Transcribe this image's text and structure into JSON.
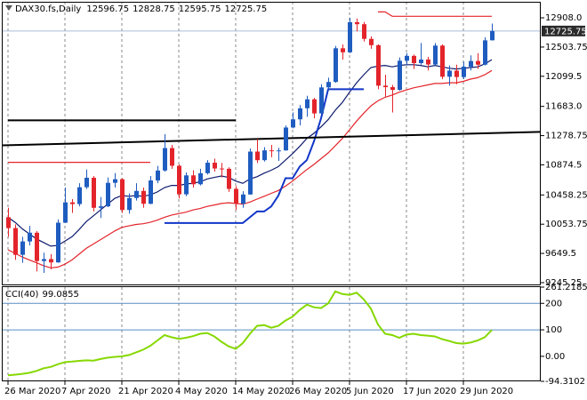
{
  "chart_data": [
    {
      "type": "candlestick",
      "title": "DAX30.fs,Daily",
      "categories": [
        "26 Mar 2020",
        null,
        null,
        null,
        null,
        null,
        null,
        null,
        "7 Apr 2020",
        null,
        null,
        null,
        null,
        null,
        null,
        null,
        "21 Apr 2020",
        null,
        null,
        null,
        null,
        null,
        null,
        null,
        "4 May 2020",
        null,
        null,
        null,
        null,
        null,
        null,
        null,
        "14 May 2020",
        null,
        null,
        null,
        null,
        null,
        null,
        null,
        "26 May 2020",
        null,
        null,
        null,
        null,
        null,
        null,
        null,
        "5 Jun 2020",
        null,
        null,
        null,
        null,
        null,
        null,
        null,
        "17 Jun 2020",
        null,
        null,
        null,
        null,
        null,
        null,
        null,
        "29 Jun 2020",
        null,
        null,
        null,
        null
      ],
      "open": [
        10150,
        10000,
        9630,
        9815,
        9936,
        9544,
        9571,
        9525,
        10075,
        10356,
        10332,
        10565,
        10696,
        10280,
        10301,
        10626,
        10676,
        10250,
        10416,
        10514,
        10336,
        10659,
        10796,
        11107,
        10862,
        10467,
        10729,
        10606,
        10759,
        10904,
        10824,
        10820,
        10542,
        10337,
        10465,
        11058,
        10939,
        11075,
        11065,
        11074,
        11391,
        11504,
        11657,
        11781,
        11586,
        11946,
        12021,
        12487,
        12431,
        12848,
        12820,
        12617,
        12530,
        11970,
        11949,
        11911,
        12315,
        12382,
        12281,
        12331,
        12262,
        12524,
        12093,
        12178,
        12089,
        12232,
        12311,
        12260,
        12596.75
      ],
      "high": [
        10280,
        10050,
        9880,
        10030,
        9960,
        9660,
        9640,
        10120,
        10560,
        10400,
        10620,
        10810,
        10720,
        10430,
        10700,
        10760,
        10690,
        10480,
        10620,
        10560,
        10720,
        10860,
        11300,
        11150,
        10880,
        10770,
        10800,
        10820,
        10940,
        10960,
        10900,
        10840,
        10580,
        10510,
        11100,
        11230,
        11120,
        11150,
        11110,
        11420,
        11600,
        11700,
        11830,
        11800,
        11990,
        12080,
        12520,
        12540,
        12910,
        12900,
        12850,
        12650,
        12540,
        12120,
        11980,
        12360,
        12420,
        12400,
        12560,
        12370,
        12560,
        12540,
        12250,
        12260,
        12300,
        12390,
        12420,
        12640,
        12828.75
      ],
      "low": [
        9880,
        9560,
        9520,
        9760,
        9400,
        9380,
        9430,
        9520,
        10070,
        10210,
        10300,
        10540,
        10230,
        10140,
        10290,
        10560,
        10210,
        10200,
        10380,
        10280,
        10330,
        10620,
        10780,
        10820,
        10410,
        10440,
        10560,
        10590,
        10740,
        10780,
        10700,
        10500,
        10250,
        10280,
        10460,
        10900,
        10920,
        10980,
        10930,
        11070,
        11380,
        11420,
        11540,
        11520,
        11580,
        11900,
        12010,
        12330,
        12420,
        12720,
        12580,
        12480,
        11920,
        11820,
        11600,
        11900,
        12250,
        12200,
        12260,
        12180,
        12250,
        12060,
        11970,
        11990,
        12060,
        12180,
        12200,
        12250,
        12595.75
      ],
      "close": [
        10000,
        9630,
        9815,
        9936,
        9544,
        9571,
        9525,
        10075,
        10356,
        10332,
        10565,
        10696,
        10280,
        10301,
        10626,
        10676,
        10250,
        10416,
        10514,
        10336,
        10659,
        10796,
        11107,
        10862,
        10467,
        10729,
        10606,
        10759,
        10904,
        10824,
        10820,
        10542,
        10337,
        10465,
        11058,
        10939,
        11075,
        11065,
        11074,
        11391,
        11504,
        11657,
        11781,
        11586,
        11946,
        12021,
        12487,
        12431,
        12848,
        12820,
        12617,
        12530,
        11970,
        11949,
        11911,
        12315,
        12382,
        12281,
        12331,
        12262,
        12524,
        12093,
        12178,
        12089,
        12232,
        12311,
        12260,
        12596.75,
        12725.75
      ],
      "up_color": "#1f5cc0",
      "down_color": "#e3242b",
      "last_price": 12725.75,
      "last_price_color": "#a9bcd6",
      "overlays": [
        {
          "color": "#0d1b6e",
          "values": [
            10150,
            10080,
            9990,
            9920,
            9850,
            9800,
            9750,
            9760,
            9820,
            9880,
            9980,
            10090,
            10170,
            10250,
            10330,
            10410,
            10450,
            10440,
            10450,
            10440,
            10460,
            10500,
            10560,
            10590,
            10590,
            10610,
            10620,
            10640,
            10680,
            10700,
            10720,
            10700,
            10650,
            10620,
            10680,
            10710,
            10760,
            10800,
            10850,
            10940,
            11030,
            11130,
            11240,
            11310,
            11400,
            11500,
            11630,
            11740,
            11880,
            12010,
            12120,
            12220,
            12240,
            12250,
            12230,
            12250,
            12260,
            12260,
            12250,
            12230,
            12250,
            12230,
            12210,
            12200,
            12210,
            12220,
            12230,
            12270,
            12330
          ]
        },
        {
          "color": "#e3242b",
          "values": [
            9700,
            9650,
            9600,
            9560,
            9520,
            9480,
            9450,
            9460,
            9500,
            9560,
            9640,
            9720,
            9780,
            9840,
            9900,
            9960,
            10010,
            10030,
            10050,
            10060,
            10080,
            10110,
            10150,
            10180,
            10200,
            10220,
            10250,
            10270,
            10300,
            10320,
            10340,
            10350,
            10340,
            10330,
            10360,
            10400,
            10440,
            10480,
            10520,
            10580,
            10650,
            10730,
            10810,
            10880,
            10960,
            11040,
            11140,
            11240,
            11360,
            11480,
            11590,
            11690,
            11760,
            11810,
            11840,
            11880,
            11910,
            11940,
            11960,
            11980,
            12000,
            12000,
            12010,
            12010,
            12030,
            12060,
            12080,
            12120,
            12180
          ]
        },
        {
          "color": "#1236c8",
          "values": [
            null,
            null,
            null,
            null,
            null,
            null,
            null,
            null,
            null,
            null,
            null,
            null,
            null,
            null,
            null,
            null,
            null,
            null,
            null,
            null,
            null,
            null,
            10070,
            10070,
            10070,
            10070,
            10070,
            10070,
            10070,
            10070,
            10070,
            10070,
            10070,
            10070,
            10150,
            10230,
            10230,
            10300,
            10450,
            10690,
            10690,
            10850,
            10940,
            11200,
            11520,
            11920,
            11920,
            11920,
            11920,
            11920,
            11920,
            null,
            null,
            null,
            null,
            null,
            null,
            null,
            null,
            null,
            null,
            null,
            null,
            null,
            null,
            null,
            null,
            null,
            null
          ]
        },
        {
          "color": "#e3242b",
          "values": [
            null,
            null,
            null,
            null,
            null,
            null,
            null,
            null,
            null,
            null,
            null,
            null,
            null,
            null,
            null,
            null,
            null,
            null,
            null,
            null,
            null,
            null,
            null,
            null,
            null,
            null,
            null,
            null,
            null,
            null,
            null,
            null,
            null,
            null,
            null,
            null,
            null,
            null,
            null,
            null,
            null,
            null,
            null,
            null,
            null,
            null,
            null,
            null,
            null,
            null,
            null,
            null,
            12990,
            12990,
            12930,
            12930,
            12930,
            12930,
            12930,
            12930,
            12930,
            12930,
            12930,
            12930,
            12930,
            12930,
            12930,
            12930,
            12930
          ]
        },
        {
          "color": "#e3242b",
          "values": [
            10910,
            10910,
            10910,
            10910,
            10910,
            10910,
            10910,
            10910,
            10910,
            10910,
            10910,
            10910,
            10910,
            10910,
            10910,
            10910,
            10910,
            10910,
            10910,
            10910,
            10910,
            null,
            null,
            null,
            null,
            null,
            null,
            null,
            null,
            null,
            null,
            null,
            null,
            null,
            null,
            null,
            null,
            null,
            null,
            null,
            null,
            null,
            null,
            null,
            null,
            null,
            null,
            null,
            null,
            null,
            null,
            null,
            null,
            null,
            null,
            null,
            null,
            null,
            null,
            null,
            null,
            null,
            null,
            null,
            null,
            null,
            null,
            null,
            null
          ]
        },
        {
          "color": "#000000",
          "values": [
            11490,
            11490,
            11490,
            11490,
            11490,
            11490,
            11490,
            11490,
            11490,
            11490,
            11490,
            11490,
            11490,
            11490,
            11490,
            11490,
            11490,
            11490,
            11490,
            11490,
            11490,
            11490,
            11490,
            11490,
            11490,
            11490,
            11490,
            11490,
            11490,
            11490,
            11490,
            11490,
            11490,
            null,
            null,
            null,
            null,
            null,
            null,
            null,
            null,
            null,
            null,
            null,
            null,
            null,
            null,
            null,
            null,
            null,
            null,
            null,
            null,
            null,
            null,
            null,
            null,
            null,
            null,
            null,
            null,
            null,
            null,
            null,
            null,
            null,
            null,
            null,
            null
          ]
        }
      ],
      "trendlines": [
        {
          "color": "#000000",
          "x": [
            -0.75,
            74.75
          ],
          "y": [
            11145,
            11330
          ]
        }
      ],
      "ylim": [
        9208,
        13130
      ],
      "yticks": [
        {
          "value": 12908,
          "label": "12908.0"
        },
        12503.75,
        12099.5,
        {
          "value": 11683,
          "label": "11683.0"
        },
        11278.75,
        10874.5,
        10458.25,
        10053.75,
        9649.5,
        9245.25
      ],
      "xgrid": true
    },
    {
      "type": "line",
      "title": "CCI(40)",
      "color": "#86d800",
      "values": [
        -72,
        -69,
        -66,
        -62,
        -55,
        -45,
        -40,
        -30,
        -22,
        -20,
        -17,
        -15,
        -16,
        -10,
        -5,
        -2,
        0,
        5,
        15,
        25,
        40,
        60,
        80,
        72,
        66,
        70,
        76,
        85,
        88,
        75,
        55,
        38,
        28,
        50,
        85,
        115,
        118,
        108,
        115,
        135,
        150,
        175,
        195,
        185,
        182,
        200,
        245,
        235,
        232,
        240,
        215,
        180,
        120,
        85,
        80,
        70,
        82,
        85,
        80,
        78,
        75,
        65,
        58,
        50,
        48,
        52,
        60,
        72,
        99.0855
      ],
      "levels": [
        200,
        100
      ],
      "level_color": "#5b8cc4",
      "ylim": [
        -94.3102,
        261.2185
      ],
      "yticks": [
        261.2185,
        200,
        100,
        {
          "value": 0,
          "label": "0.00"
        },
        -94.3102
      ]
    }
  ]
}
